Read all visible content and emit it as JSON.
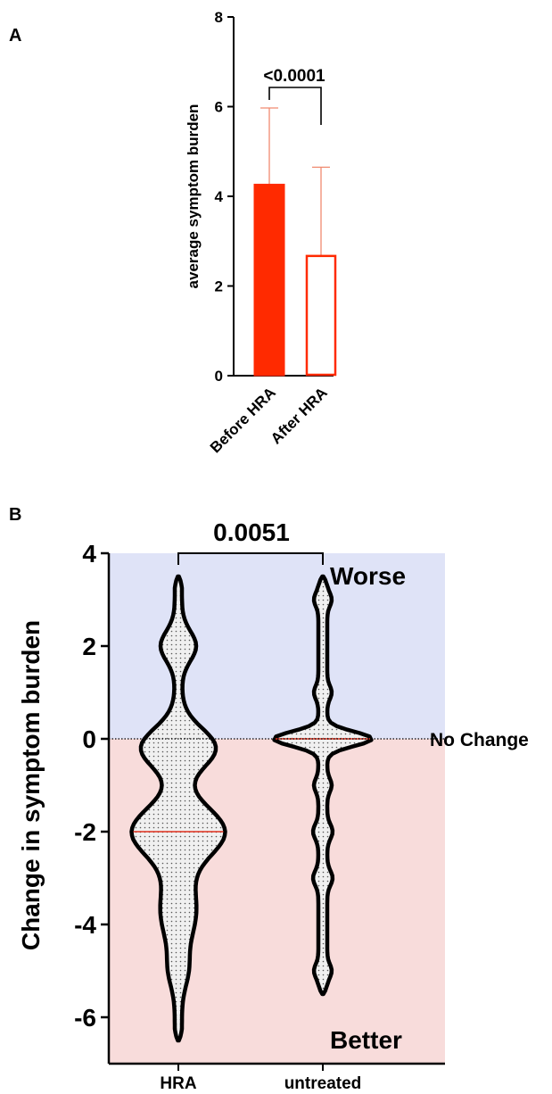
{
  "chart_data": [
    {
      "panel": "A",
      "type": "bar",
      "ylabel": "average symptom burden",
      "ylim": [
        0,
        8
      ],
      "yticks": [
        "0",
        "2",
        "4",
        "6",
        "8"
      ],
      "categories": [
        "Before HRA",
        "After HRA"
      ],
      "values": [
        4.27,
        2.67
      ],
      "error_upper": [
        5.97,
        4.65
      ],
      "bar_styles": [
        "filled",
        "outline"
      ],
      "annotation": "<0.0001",
      "colors": {
        "bar": "#ff2a00",
        "error": "#f08a70"
      },
      "grid": false
    },
    {
      "panel": "B",
      "type": "violin",
      "ylabel": "Change in symptom burden",
      "ylim": [
        -7,
        4
      ],
      "yticks": [
        "4",
        "2",
        "0",
        "-2",
        "-4",
        "-6"
      ],
      "categories": [
        "HRA",
        "untreated"
      ],
      "medians": [
        -2,
        0
      ],
      "ranges": [
        [
          -6.5,
          3.5
        ],
        [
          -5.5,
          3.5
        ]
      ],
      "modes": [
        [
          2,
          -0.2,
          -2,
          -5
        ],
        [
          3,
          1,
          0,
          -1,
          -2,
          -3,
          -5
        ]
      ],
      "annotation": "0.0051",
      "region_labels": {
        "upper": "Worse",
        "lower": "Better",
        "line": "No Change"
      },
      "colors": {
        "worse_bg": "#dfe3f7",
        "better_bg": "#f8dcdb",
        "median": "#e0301e",
        "fill": "#ececec"
      },
      "grid": false
    }
  ]
}
